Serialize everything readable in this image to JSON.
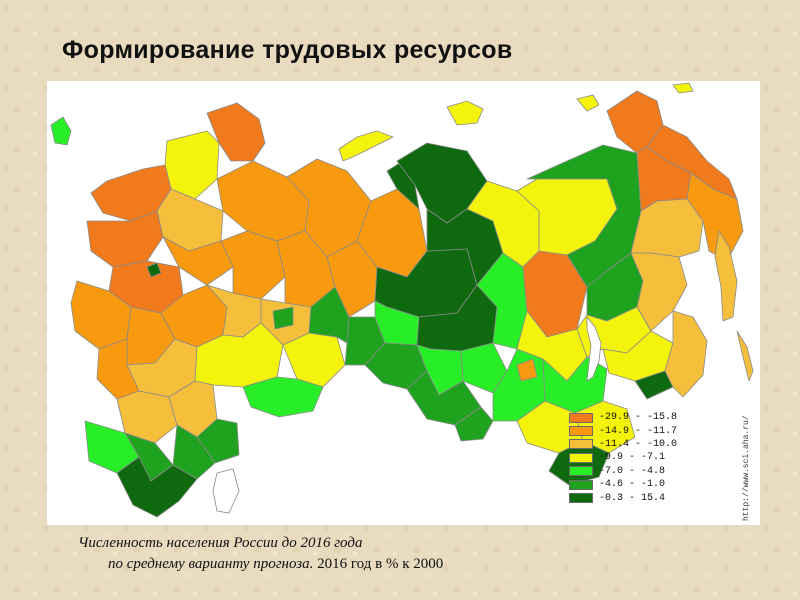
{
  "slide": {
    "title": "Формирование трудовых ресурсов"
  },
  "map": {
    "source_url": "http://www.sci.aha.ru/",
    "legend": [
      {
        "label": "-29.9 - -15.8",
        "color": "#f07a1c"
      },
      {
        "label": "-14.9 - -11.7",
        "color": "#f79a10"
      },
      {
        "label": "-11.4 - -10.0",
        "color": "#f5bf3c"
      },
      {
        "label": "-9.9 - -7.1",
        "color": "#f4f30c"
      },
      {
        "label": "-7.0 - -4.8",
        "color": "#28ee28"
      },
      {
        "label": "-4.6 - -1.0",
        "color": "#1fa31f"
      },
      {
        "label": "-0.3 - 15.4",
        "color": "#0f6a0f"
      }
    ]
  },
  "caption": {
    "line1": "Численность населения России до 2016 года",
    "line2_italic": "по среднему варианту прогноза.",
    "line2_plain": " 2016 год в % к 2000"
  }
}
